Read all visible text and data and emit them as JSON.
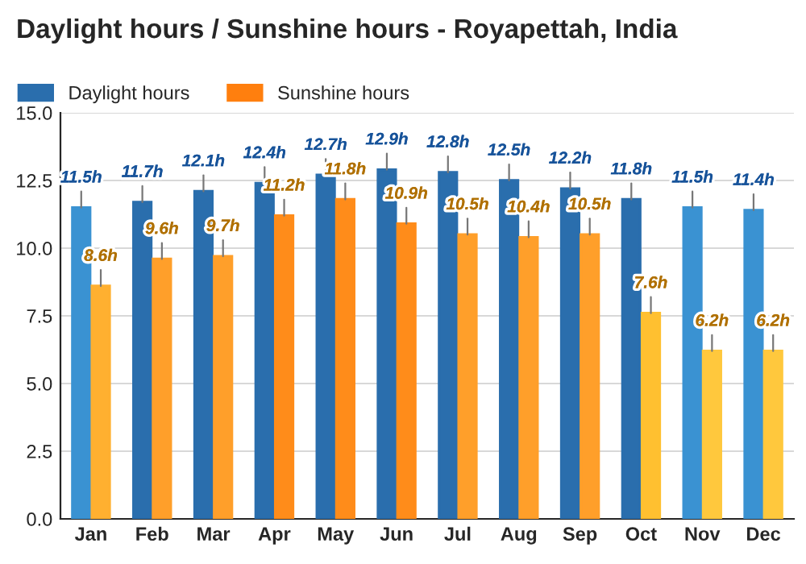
{
  "chart_data": {
    "type": "bar",
    "title": "Daylight hours / Sunshine hours - Royapettah, India",
    "categories": [
      "Jan",
      "Feb",
      "Mar",
      "Apr",
      "May",
      "Jun",
      "Jul",
      "Aug",
      "Sep",
      "Oct",
      "Nov",
      "Dec"
    ],
    "series": [
      {
        "name": "Daylight hours",
        "color": "#2a6ead",
        "colors": [
          "#3a92d2",
          "#2a6ead",
          "#2a6ead",
          "#2a6ead",
          "#2a6ead",
          "#2a6ead",
          "#2a6ead",
          "#2a6ead",
          "#2a6ead",
          "#2a6ead",
          "#3a92d2",
          "#3a92d2"
        ],
        "values": [
          11.5,
          11.7,
          12.1,
          12.4,
          12.7,
          12.9,
          12.8,
          12.5,
          12.2,
          11.8,
          11.5,
          11.4
        ],
        "value_labels": [
          "11.5h",
          "11.7h",
          "12.1h",
          "12.4h",
          "12.7h",
          "12.9h",
          "12.8h",
          "12.5h",
          "12.2h",
          "11.8h",
          "11.5h",
          "11.4h"
        ]
      },
      {
        "name": "Sunshine hours",
        "color": "#ff7f0e",
        "colors": [
          "#ffb030",
          "#ff9f2a",
          "#ff9f2a",
          "#ff8c1a",
          "#ff8c1a",
          "#ff8c1a",
          "#ff9f2a",
          "#ff9f2a",
          "#ff9f2a",
          "#ffc030",
          "#ffc83d",
          "#ffc83d"
        ],
        "values": [
          8.6,
          9.6,
          9.7,
          11.2,
          11.8,
          10.9,
          10.5,
          10.4,
          10.5,
          7.6,
          6.2,
          6.2
        ],
        "value_labels": [
          "8.6h",
          "9.6h",
          "9.7h",
          "11.2h",
          "11.8h",
          "10.9h",
          "10.5h",
          "10.4h",
          "10.5h",
          "7.6h",
          "6.2h",
          "6.2h"
        ]
      }
    ],
    "ylim": [
      0,
      15
    ],
    "yticks": [
      {
        "value": 0,
        "label": "0.0"
      },
      {
        "value": 2.5,
        "label": "2.5"
      },
      {
        "value": 5,
        "label": "5.0"
      },
      {
        "value": 7.5,
        "label": "7.5"
      },
      {
        "value": 10,
        "label": "10.0"
      },
      {
        "value": 12.5,
        "label": "12.5"
      },
      {
        "value": 15,
        "label": "15.0"
      }
    ],
    "grid": "y",
    "legend": "top left"
  }
}
